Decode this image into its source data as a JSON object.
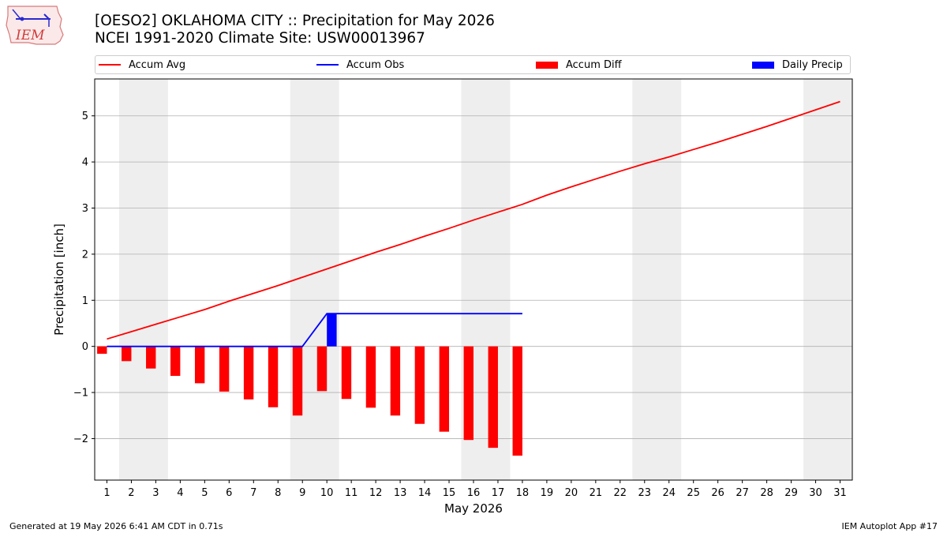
{
  "header": {
    "title_line1": "[OESO2] OKLAHOMA CITY :: Precipitation for May 2026",
    "title_line2": "NCEI 1991-2020 Climate Site: USW00013967"
  },
  "logo": {
    "text": "IEM",
    "icon": "iem-logo-icon"
  },
  "legend": [
    {
      "label": "Accum Avg",
      "kind": "line",
      "color": "#ff0000"
    },
    {
      "label": "Accum Obs",
      "kind": "line",
      "color": "#0000ff"
    },
    {
      "label": "Accum Diff",
      "kind": "box",
      "color": "#ff0000"
    },
    {
      "label": "Daily Precip",
      "kind": "box",
      "color": "#0000ff"
    }
  ],
  "footer": {
    "left": "Generated at 19 May 2026 6:41 AM CDT in 0.71s",
    "right": "IEM Autoplot App #17"
  },
  "chart_data": {
    "type": "bar",
    "xlabel": "May 2026",
    "ylabel": "Precipitation [inch]",
    "ylim": [
      -2.9,
      5.8
    ],
    "xlim": [
      0.5,
      31.5
    ],
    "y_ticks": [
      -2,
      -1,
      0,
      1,
      2,
      3,
      4,
      5
    ],
    "y_tick_labels": [
      "−2",
      "−1",
      "0",
      "1",
      "2",
      "3",
      "4",
      "5"
    ],
    "x_ticks": [
      1,
      2,
      3,
      4,
      5,
      6,
      7,
      8,
      9,
      10,
      11,
      12,
      13,
      14,
      15,
      16,
      17,
      18,
      19,
      20,
      21,
      22,
      23,
      24,
      25,
      26,
      27,
      28,
      29,
      30,
      31
    ],
    "x_tick_labels": [
      "1",
      "2",
      "3",
      "4",
      "5",
      "6",
      "7",
      "8",
      "9",
      "10",
      "11",
      "12",
      "13",
      "14",
      "15",
      "16",
      "17",
      "18",
      "19",
      "20",
      "21",
      "22",
      "23",
      "24",
      "25",
      "26",
      "27",
      "28",
      "29",
      "30",
      "31"
    ],
    "grid": "horizontal",
    "weekend_shading": [
      [
        1.5,
        3.5
      ],
      [
        8.5,
        10.5
      ],
      [
        15.5,
        17.5
      ],
      [
        22.5,
        24.5
      ],
      [
        29.5,
        31.5
      ]
    ],
    "colors": {
      "avg": "#ff0000",
      "obs": "#0000ff",
      "diff": "#ff0000",
      "daily": "#0000ff",
      "shade": "#eeeeee",
      "grid": "#b0b0b0"
    },
    "series": [
      {
        "name": "Accum Avg",
        "kind": "line",
        "x": [
          1,
          2,
          3,
          4,
          5,
          6,
          7,
          8,
          9,
          10,
          11,
          12,
          13,
          14,
          15,
          16,
          17,
          18,
          19,
          20,
          21,
          22,
          23,
          24,
          25,
          26,
          27,
          28,
          29,
          30,
          31
        ],
        "values": [
          0.16,
          0.32,
          0.48,
          0.64,
          0.8,
          0.98,
          1.15,
          1.32,
          1.5,
          1.68,
          1.86,
          2.04,
          2.21,
          2.39,
          2.56,
          2.74,
          2.91,
          3.08,
          3.28,
          3.46,
          3.63,
          3.8,
          3.96,
          4.11,
          4.27,
          4.43,
          4.6,
          4.77,
          4.95,
          5.13,
          5.31
        ]
      },
      {
        "name": "Accum Obs",
        "kind": "line",
        "x": [
          1,
          2,
          3,
          4,
          5,
          6,
          7,
          8,
          9,
          10,
          11,
          12,
          13,
          14,
          15,
          16,
          17,
          18
        ],
        "values": [
          0,
          0,
          0,
          0,
          0,
          0,
          0,
          0,
          0,
          0.71,
          0.71,
          0.71,
          0.71,
          0.71,
          0.71,
          0.71,
          0.71,
          0.71
        ]
      },
      {
        "name": "Accum Diff",
        "kind": "bar",
        "x": [
          1,
          2,
          3,
          4,
          5,
          6,
          7,
          8,
          9,
          10,
          11,
          12,
          13,
          14,
          15,
          16,
          17,
          18
        ],
        "values": [
          -0.16,
          -0.32,
          -0.48,
          -0.64,
          -0.8,
          -0.98,
          -1.15,
          -1.32,
          -1.5,
          -0.97,
          -1.14,
          -1.33,
          -1.5,
          -1.68,
          -1.85,
          -2.03,
          -2.2,
          -2.37
        ]
      },
      {
        "name": "Daily Precip",
        "kind": "bar",
        "x": [
          1,
          2,
          3,
          4,
          5,
          6,
          7,
          8,
          9,
          10,
          11,
          12,
          13,
          14,
          15,
          16,
          17,
          18
        ],
        "values": [
          0,
          0,
          0,
          0,
          0,
          0,
          0,
          0,
          0,
          0.71,
          0,
          0,
          0,
          0,
          0,
          0,
          0,
          0
        ]
      }
    ]
  }
}
